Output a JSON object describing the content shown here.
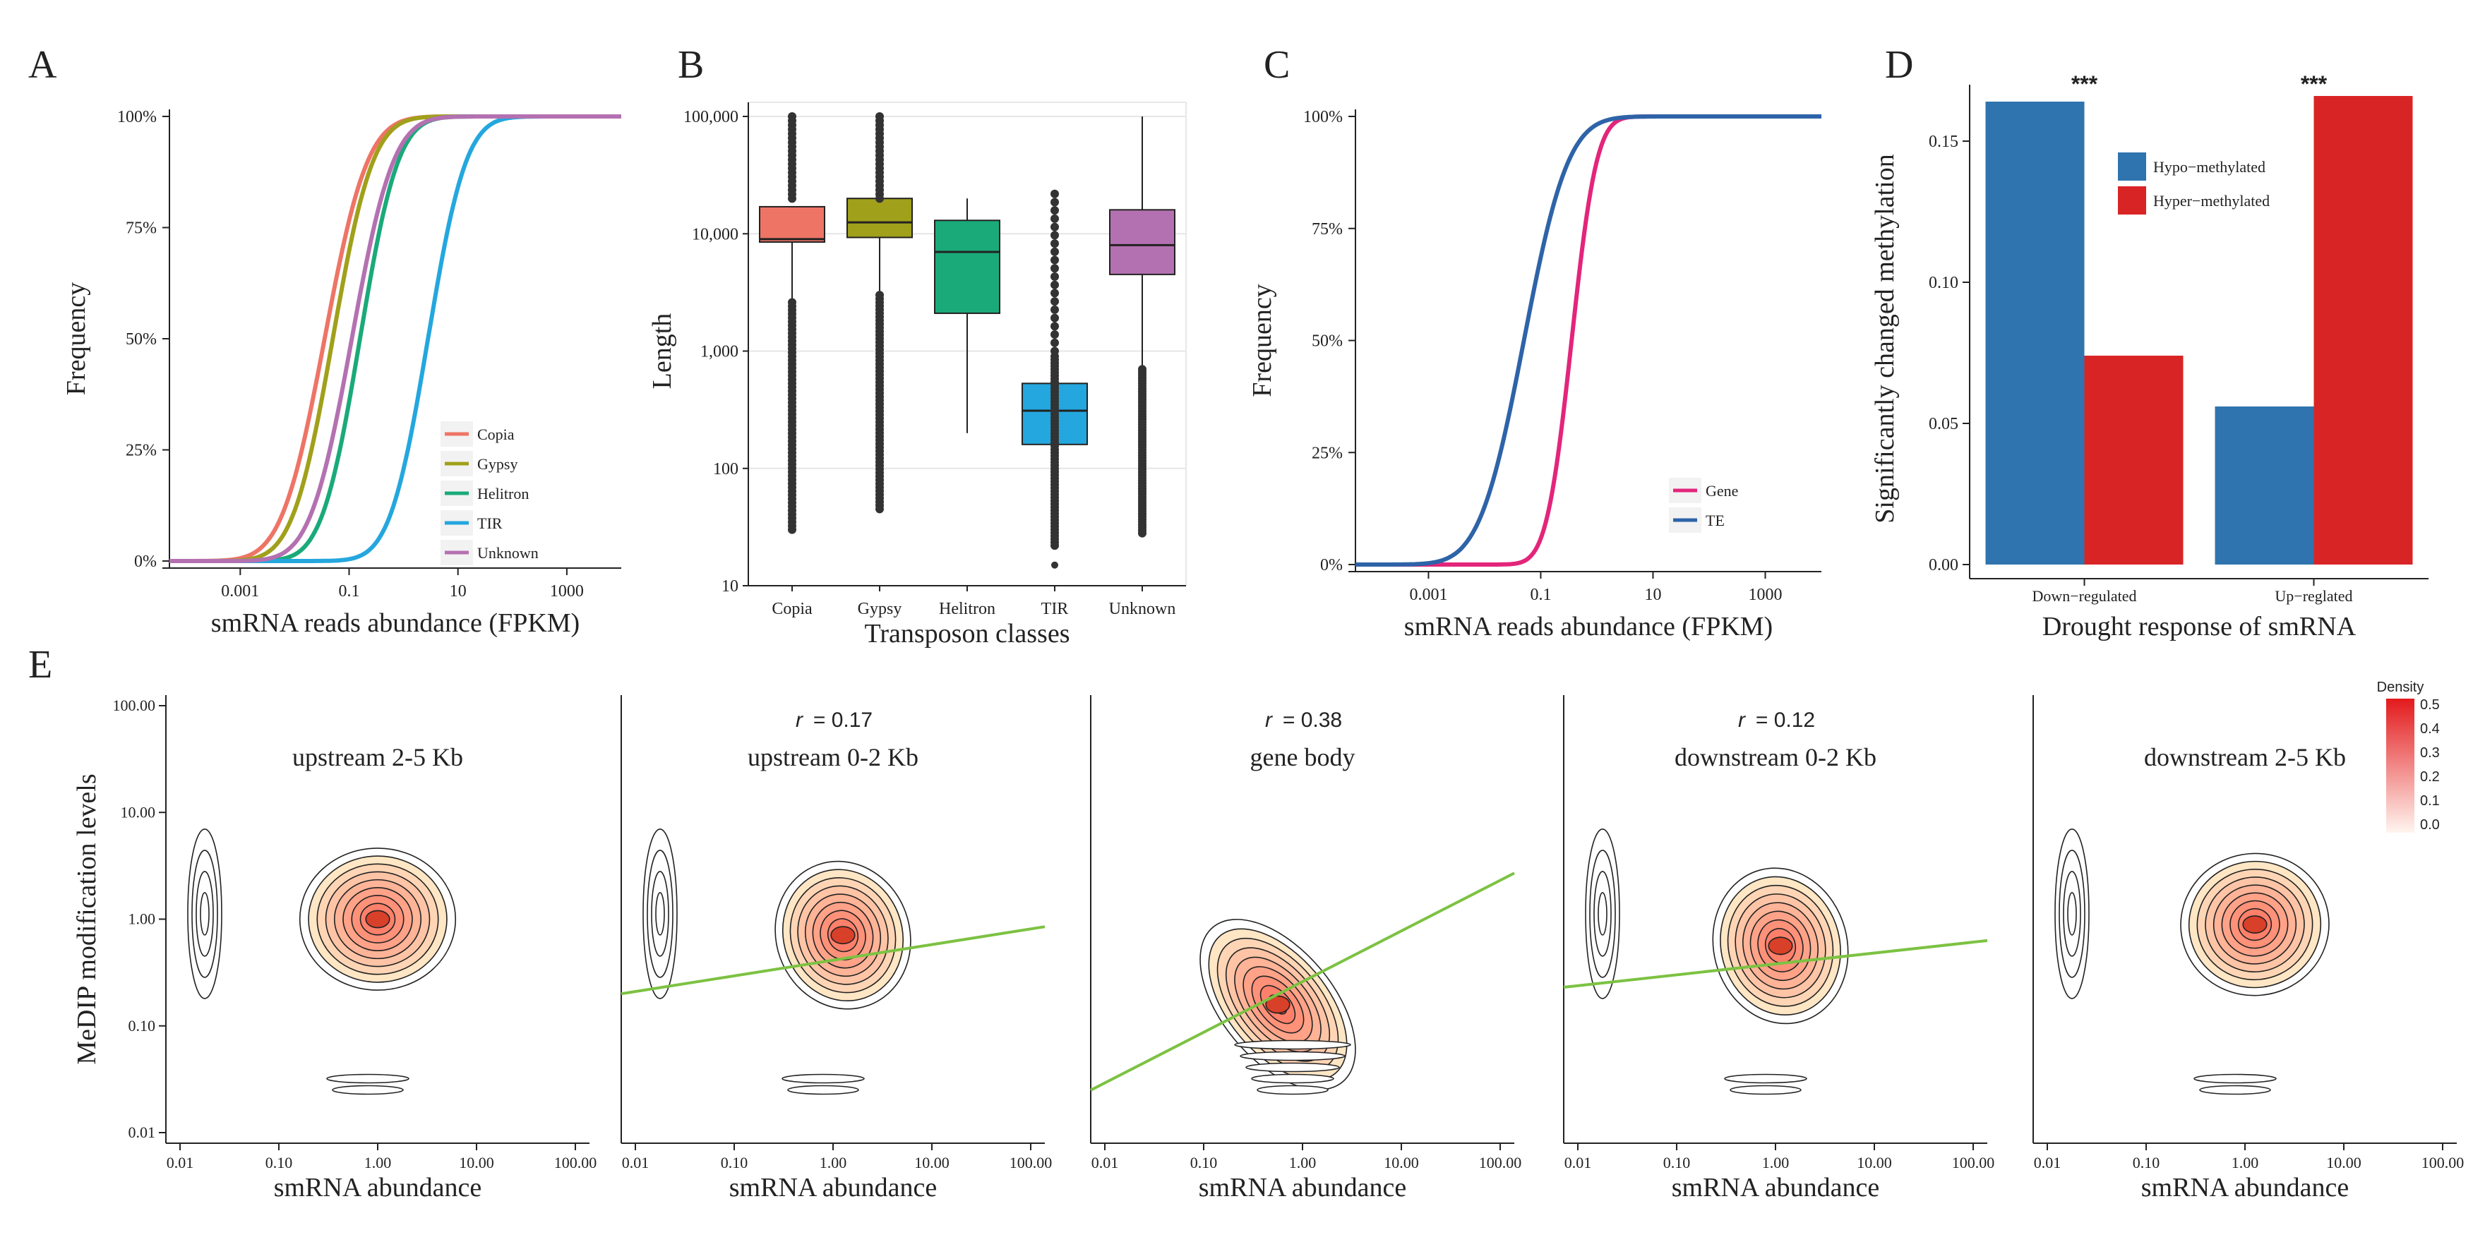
{
  "panel_letters": [
    "A",
    "B",
    "C",
    "D",
    "E"
  ],
  "colors": {
    "Copia": "#ee7466",
    "Gypsy": "#a0a01b",
    "Helitron": "#1aaa7a",
    "TIR": "#24a7de",
    "Unknown": "#b471b1",
    "Gene": "#e3257b",
    "TE": "#2e63a8",
    "Hypo": "#2f74ae",
    "Hyper": "#d92426",
    "fit": "#7cc242"
  },
  "chart_data": [
    {
      "panel": "A",
      "type": "line",
      "log_x": true,
      "xlabel": "smRNA reads abundance (FPKM)",
      "ylabel": "Frequency",
      "xticks": [
        "0.001",
        "0.1",
        "10",
        "1000"
      ],
      "yticks": [
        "0%",
        "25%",
        "50%",
        "75%",
        "100%"
      ],
      "xlim": [
        5e-05,
        10000
      ],
      "ylim": [
        0,
        1
      ],
      "series": [
        {
          "name": "Copia",
          "mu": -1.45,
          "sigma": 0.62
        },
        {
          "name": "Gypsy",
          "mu": -1.3,
          "sigma": 0.58
        },
        {
          "name": "Helitron",
          "mu": -0.8,
          "sigma": 0.55
        },
        {
          "name": "TIR",
          "mu": 0.45,
          "sigma": 0.55
        },
        {
          "name": "Unknown",
          "mu": -0.95,
          "sigma": 0.6
        }
      ]
    },
    {
      "panel": "B",
      "type": "box",
      "log_y": true,
      "xlabel": "Transposon classes",
      "ylabel": "Length",
      "yticks": [
        "10",
        "100",
        "1,000",
        "10,000",
        "100,000"
      ],
      "ylim": [
        10,
        100000
      ],
      "categories": [
        "Copia",
        "Gypsy",
        "Helitron",
        "TIR",
        "Unknown"
      ],
      "boxes": [
        {
          "q1": 8500,
          "median": 9000,
          "q3": 17000,
          "lo": 2600,
          "hi": 17000
        },
        {
          "q1": 9300,
          "median": 12500,
          "q3": 20000,
          "lo": 3000,
          "hi": 20000
        },
        {
          "q1": 2100,
          "median": 7000,
          "q3": 13000,
          "lo": 200,
          "hi": 20000
        },
        {
          "q1": 160,
          "median": 310,
          "q3": 530,
          "lo": 60,
          "hi": 900
        },
        {
          "q1": 4500,
          "median": 8000,
          "q3": 16000,
          "lo": 700,
          "hi": 100000
        }
      ]
    },
    {
      "panel": "C",
      "type": "line",
      "log_x": true,
      "xlabel": "smRNA reads abundance (FPKM)",
      "ylabel": "Frequency",
      "xticks": [
        "0.001",
        "0.1",
        "10",
        "1000"
      ],
      "yticks": [
        "0%",
        "25%",
        "50%",
        "75%",
        "100%"
      ],
      "xlim": [
        5e-05,
        10000
      ],
      "ylim": [
        0,
        1
      ],
      "series": [
        {
          "name": "Gene",
          "mu": -0.45,
          "sigma": 0.35
        },
        {
          "name": "TE",
          "mu": -1.3,
          "sigma": 0.62
        }
      ]
    },
    {
      "panel": "E",
      "type": "bar",
      "xlabel": "Drought response of smRNA",
      "ylabel": "Significantly changed methylation",
      "categories": [
        "Down−regulated",
        "Up−reglated"
      ],
      "yticks": [
        "0.00",
        "0.05",
        "0.10",
        "0.15"
      ],
      "ylim": [
        0,
        0.17
      ],
      "significance": [
        "***",
        "***"
      ],
      "series": [
        {
          "name": "Hypo−methylated",
          "values": [
            0.164,
            0.056
          ]
        },
        {
          "name": "Hyper−methylated",
          "values": [
            0.074,
            0.166
          ]
        }
      ]
    },
    {
      "panel": "D",
      "type": "contour",
      "log_x": true,
      "log_y": true,
      "xlabel": "smRNA abundance",
      "ylabel": "MeDIP modification levels",
      "xticks": [
        "0.01",
        "0.10",
        "1.00",
        "10.00",
        "100.00"
      ],
      "yticks": [
        "0.01",
        "0.10",
        "1.00",
        "10.00",
        "100.00"
      ],
      "legend": {
        "title": "Density",
        "ticks": [
          "0.5",
          "0.4",
          "0.3",
          "0.2",
          "0.1",
          "0.0"
        ]
      },
      "facets": [
        {
          "title": "upstream 2-5 Kb",
          "r": "",
          "fit": null
        },
        {
          "title": "upstream 0-2 Kb",
          "r": "0.17",
          "fit": [
            0.2,
            0.85
          ]
        },
        {
          "title": "gene body",
          "r": "0.38",
          "fit": [
            0.025,
            2.7
          ]
        },
        {
          "title": "downstream 0-2 Kb",
          "r": "0.12",
          "fit": [
            0.23,
            0.63
          ]
        },
        {
          "title": "downstream  2-5 Kb",
          "r": "",
          "fit": null
        }
      ]
    }
  ]
}
